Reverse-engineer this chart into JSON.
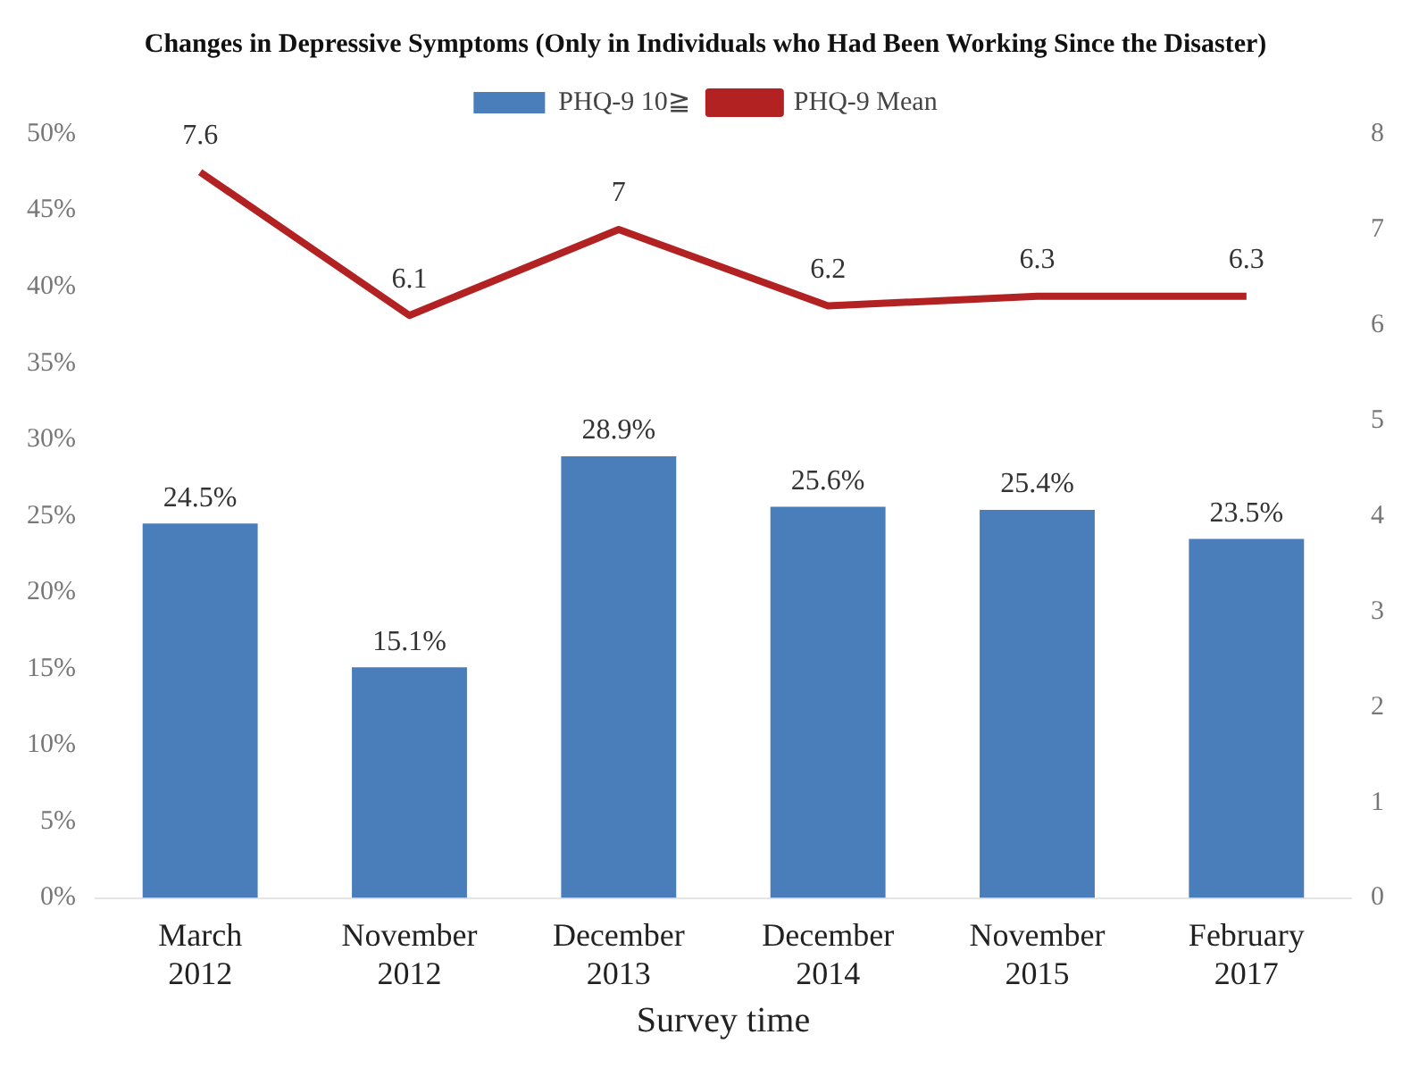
{
  "chart_data": {
    "type": "bar",
    "title": "Changes in Depressive Symptoms (Only in Individuals who Had Been Working Since the Disaster)",
    "xlabel": "Survey time",
    "categories": [
      "March 2012",
      "November 2012",
      "December 2013",
      "December 2014",
      "November 2015",
      "February 2017"
    ],
    "series": [
      {
        "name": "PHQ-9 10≧",
        "color": "#4a7ebb",
        "values": [
          24.5,
          15.1,
          28.9,
          25.6,
          25.4,
          23.5
        ],
        "value_labels": [
          "24.5%",
          "15.1%",
          "28.9%",
          "25.6%",
          "25.4%",
          "23.5%"
        ]
      },
      {
        "name": "PHQ-9 Mean",
        "type": "line",
        "axis": "y2",
        "color": "#b22222",
        "values": [
          7.6,
          6.1,
          7,
          6.2,
          6.3,
          6.3
        ],
        "value_labels": [
          "7.6",
          "6.1",
          "7",
          "6.2",
          "6.3",
          "6.3"
        ]
      }
    ],
    "ylim": [
      0,
      50
    ],
    "yticks": [
      {
        "value": 0,
        "label": "0%"
      },
      {
        "value": 5,
        "label": "5%"
      },
      {
        "value": 10,
        "label": "10%"
      },
      {
        "value": 15,
        "label": "15%"
      },
      {
        "value": 20,
        "label": "20%"
      },
      {
        "value": 25,
        "label": "25%"
      },
      {
        "value": 30,
        "label": "30%"
      },
      {
        "value": 35,
        "label": "35%"
      },
      {
        "value": 40,
        "label": "40%"
      },
      {
        "value": 45,
        "label": "45%"
      },
      {
        "value": 50,
        "label": "50%"
      }
    ],
    "y2lim": [
      0,
      8
    ],
    "y2ticks": [
      0,
      1,
      2,
      3,
      4,
      5,
      6,
      7,
      8
    ],
    "grid": false,
    "legend": "top",
    "marker": "none",
    "line_style": "solid"
  }
}
